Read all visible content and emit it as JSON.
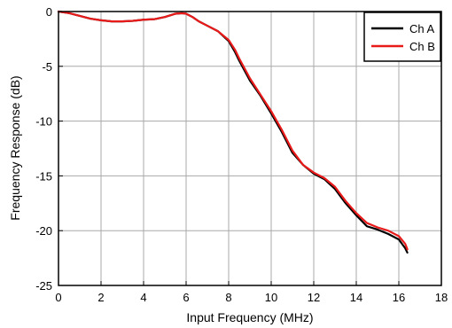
{
  "chart_data": {
    "type": "line",
    "title": "",
    "xlabel": "Input Frequency (MHz)",
    "ylabel": "Frequency Response (dB)",
    "xlim": [
      0,
      18
    ],
    "ylim": [
      -25,
      0
    ],
    "x_ticks": [
      0,
      2,
      4,
      6,
      8,
      10,
      12,
      14,
      16,
      18
    ],
    "y_ticks": [
      0,
      -5,
      -10,
      -15,
      -20,
      -25
    ],
    "x_tick_labels": [
      "0",
      "2",
      "4",
      "6",
      "8",
      "10",
      "12",
      "14",
      "16",
      "18"
    ],
    "y_tick_labels": [
      "0",
      "-5",
      "-10",
      "-15",
      "-20",
      "-25"
    ],
    "grid": true,
    "legend_position": "top-right",
    "series": [
      {
        "name": "Ch A",
        "color": "#000000",
        "points": [
          [
            0,
            0
          ],
          [
            0.5,
            -0.15
          ],
          [
            1,
            -0.4
          ],
          [
            1.5,
            -0.65
          ],
          [
            2,
            -0.8
          ],
          [
            2.5,
            -0.9
          ],
          [
            3,
            -0.9
          ],
          [
            3.5,
            -0.85
          ],
          [
            4,
            -0.75
          ],
          [
            4.5,
            -0.7
          ],
          [
            5,
            -0.5
          ],
          [
            5.5,
            -0.2
          ],
          [
            5.8,
            -0.15
          ],
          [
            6,
            -0.2
          ],
          [
            6.3,
            -0.5
          ],
          [
            6.6,
            -0.9
          ],
          [
            7,
            -1.3
          ],
          [
            7.5,
            -1.8
          ],
          [
            8,
            -2.7
          ],
          [
            8.3,
            -3.7
          ],
          [
            8.5,
            -4.5
          ],
          [
            9,
            -6.3
          ],
          [
            9.5,
            -7.7
          ],
          [
            10,
            -9.3
          ],
          [
            10.5,
            -11.0
          ],
          [
            11,
            -12.9
          ],
          [
            11.5,
            -14.0
          ],
          [
            12,
            -14.8
          ],
          [
            12.5,
            -15.3
          ],
          [
            13,
            -16.2
          ],
          [
            13.5,
            -17.5
          ],
          [
            14,
            -18.6
          ],
          [
            14.5,
            -19.6
          ],
          [
            15,
            -19.9
          ],
          [
            15.5,
            -20.3
          ],
          [
            16,
            -20.8
          ],
          [
            16.3,
            -21.6
          ],
          [
            16.4,
            -22.0
          ]
        ]
      },
      {
        "name": "Ch B",
        "color": "#e81a1a",
        "points": [
          [
            0,
            0
          ],
          [
            0.5,
            -0.15
          ],
          [
            1,
            -0.4
          ],
          [
            1.5,
            -0.65
          ],
          [
            2,
            -0.8
          ],
          [
            2.5,
            -0.9
          ],
          [
            3,
            -0.9
          ],
          [
            3.5,
            -0.85
          ],
          [
            4,
            -0.75
          ],
          [
            4.5,
            -0.7
          ],
          [
            5,
            -0.5
          ],
          [
            5.5,
            -0.2
          ],
          [
            5.8,
            -0.15
          ],
          [
            6,
            -0.2
          ],
          [
            6.3,
            -0.5
          ],
          [
            6.6,
            -0.9
          ],
          [
            7,
            -1.3
          ],
          [
            7.5,
            -1.8
          ],
          [
            8,
            -2.6
          ],
          [
            8.3,
            -3.5
          ],
          [
            8.5,
            -4.3
          ],
          [
            9,
            -6.1
          ],
          [
            9.5,
            -7.6
          ],
          [
            10,
            -9.1
          ],
          [
            10.5,
            -10.8
          ],
          [
            11,
            -12.7
          ],
          [
            11.5,
            -14.0
          ],
          [
            12,
            -14.7
          ],
          [
            12.5,
            -15.2
          ],
          [
            13,
            -16.0
          ],
          [
            13.5,
            -17.3
          ],
          [
            14,
            -18.4
          ],
          [
            14.5,
            -19.3
          ],
          [
            15,
            -19.7
          ],
          [
            15.5,
            -20.0
          ],
          [
            16,
            -20.5
          ],
          [
            16.3,
            -21.2
          ],
          [
            16.4,
            -21.7
          ]
        ]
      }
    ]
  }
}
